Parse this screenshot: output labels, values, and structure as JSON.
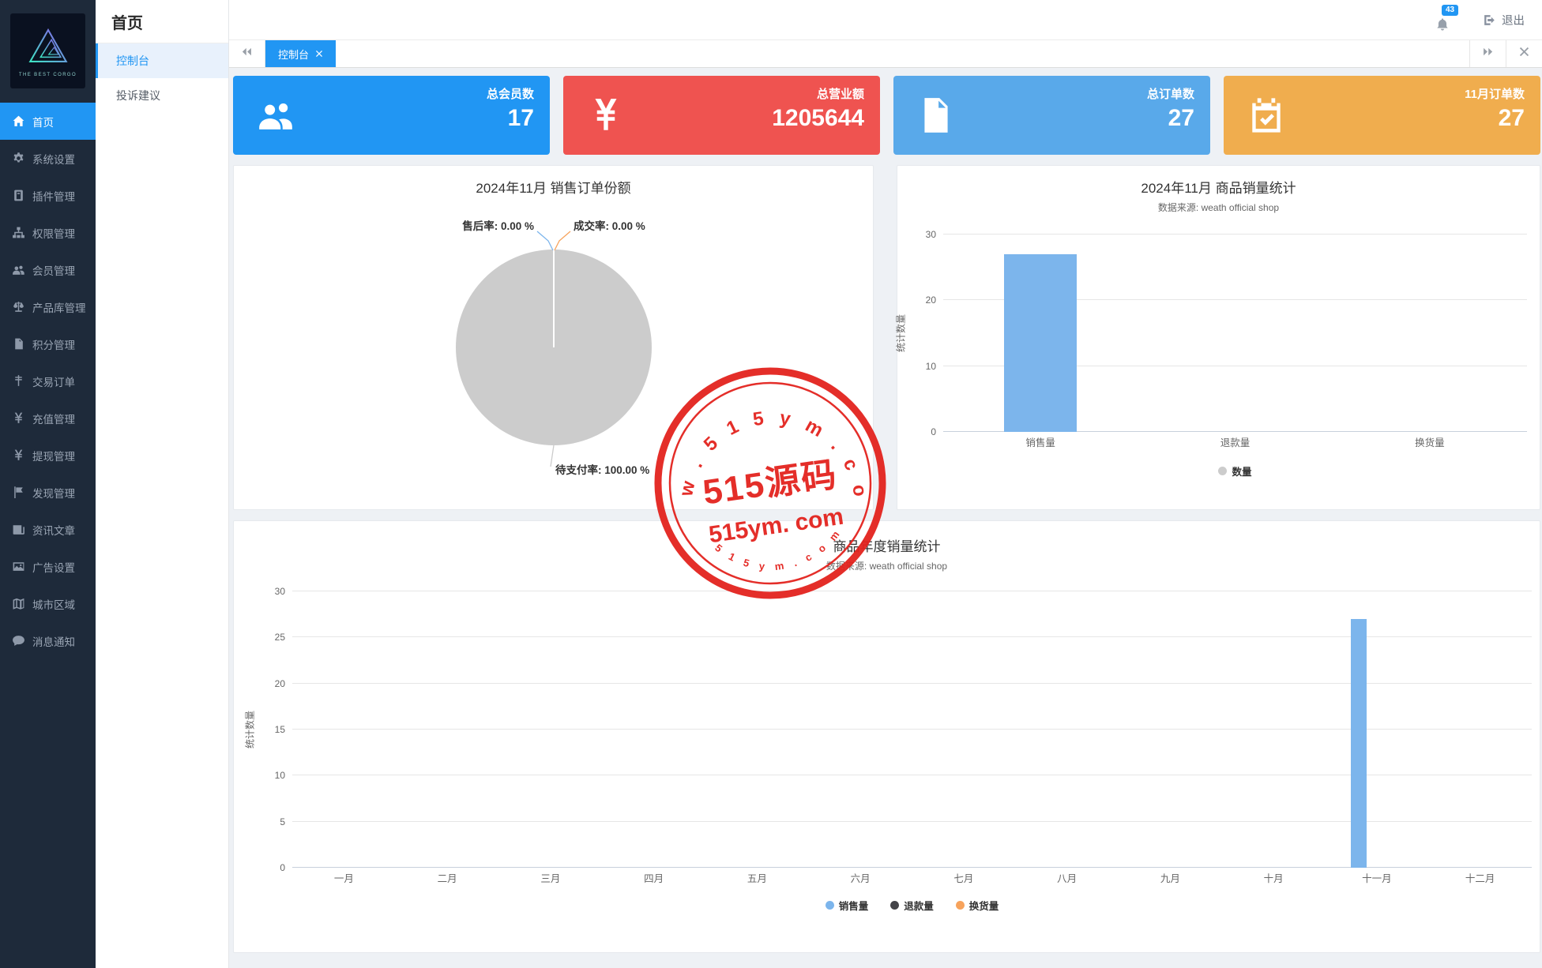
{
  "app": {
    "logo_text": "THE BEST CORGO",
    "logo_icon": "triangle-logo"
  },
  "sidebar": {
    "items": [
      {
        "name": "home",
        "label": "首页",
        "icon": "home-icon",
        "active": true
      },
      {
        "name": "system-settings",
        "label": "系统设置",
        "icon": "gear-icon"
      },
      {
        "name": "plugin-management",
        "label": "插件管理",
        "icon": "plugin-icon"
      },
      {
        "name": "permission-management",
        "label": "权限管理",
        "icon": "sitemap-icon"
      },
      {
        "name": "member-management",
        "label": "会员管理",
        "icon": "users-icon"
      },
      {
        "name": "product-library",
        "label": "产品库管理",
        "icon": "scale-icon"
      },
      {
        "name": "points-management",
        "label": "积分管理",
        "icon": "points-file-icon"
      },
      {
        "name": "trade-orders",
        "label": "交易订单",
        "icon": "transaction-icon"
      },
      {
        "name": "recharge-management",
        "label": "充值管理",
        "icon": "yen-icon"
      },
      {
        "name": "withdrawal-management",
        "label": "提现管理",
        "icon": "yen-icon"
      },
      {
        "name": "discovery-management",
        "label": "发现管理",
        "icon": "flag-icon"
      },
      {
        "name": "news-articles",
        "label": "资讯文章",
        "icon": "newspaper-icon"
      },
      {
        "name": "ad-settings",
        "label": "广告设置",
        "icon": "image-icon"
      },
      {
        "name": "city-regions",
        "label": "城市区域",
        "icon": "map-icon"
      },
      {
        "name": "message-notifications",
        "label": "消息通知",
        "icon": "comment-icon"
      }
    ]
  },
  "submenu": {
    "title": "首页",
    "items": [
      {
        "name": "console",
        "label": "控制台",
        "active": true
      },
      {
        "name": "complaints-suggestions",
        "label": "投诉建议",
        "active": false
      }
    ]
  },
  "header": {
    "notification_count": "43",
    "logout_label": "退出"
  },
  "tabbar": {
    "tabs": [
      {
        "label": "控制台",
        "active": true,
        "closable": true
      }
    ]
  },
  "stat_cards": [
    {
      "name": "total-members",
      "label": "总会员数",
      "value": "17",
      "color": "#2196f3",
      "icon": "users-group-icon"
    },
    {
      "name": "total-revenue",
      "label": "总营业额",
      "value": "1205644",
      "color": "#ef5350",
      "icon": "yen-sign-icon"
    },
    {
      "name": "total-orders",
      "label": "总订单数",
      "value": "27",
      "color": "#59a9ea",
      "icon": "file-text-icon"
    },
    {
      "name": "november-orders",
      "label": "11月订单数",
      "value": "27",
      "color": "#f0ad4e",
      "icon": "calendar-check-icon"
    }
  ],
  "chart_data": [
    {
      "type": "pie",
      "title": "2024年11月 销售订单份额",
      "slices": [
        {
          "label": "售后率",
          "value_pct": 0.0,
          "display": "售后率: 0.00 %",
          "leader_color": "#7cb5ec"
        },
        {
          "label": "成交率",
          "value_pct": 0.0,
          "display": "成交率: 0.00 %",
          "leader_color": "#f7a35c"
        },
        {
          "label": "待支付率",
          "value_pct": 100.0,
          "display": "待支付率: 100.00 %",
          "leader_color": "#cccccc",
          "color": "#cccccc"
        }
      ]
    },
    {
      "type": "bar",
      "title": "2024年11月 商品销量统计",
      "subtitle": "数据来源: weath official shop",
      "categories": [
        "销售量",
        "退款量",
        "换货量"
      ],
      "values": [
        27,
        0,
        0
      ],
      "bar_color": "#7cb5ec",
      "ylabel": "统计数量",
      "yticks": [
        0,
        10,
        20,
        30
      ],
      "ylim": [
        0,
        30
      ],
      "grid": true,
      "legend_position": "bottom",
      "legend": [
        {
          "name": "数量",
          "color": "#cccccc"
        }
      ]
    },
    {
      "type": "bar",
      "title": "商品年度销量统计",
      "subtitle": "数据来源: weath official shop",
      "categories": [
        "一月",
        "二月",
        "三月",
        "四月",
        "五月",
        "六月",
        "七月",
        "八月",
        "九月",
        "十月",
        "十一月",
        "十二月"
      ],
      "series": [
        {
          "name": "销售量",
          "color": "#7cb5ec",
          "values": [
            0,
            0,
            0,
            0,
            0,
            0,
            0,
            0,
            0,
            0,
            27,
            0
          ]
        },
        {
          "name": "退款量",
          "color": "#434348",
          "values": [
            0,
            0,
            0,
            0,
            0,
            0,
            0,
            0,
            0,
            0,
            0,
            0
          ]
        },
        {
          "name": "换货量",
          "color": "#f7a35c",
          "values": [
            0,
            0,
            0,
            0,
            0,
            0,
            0,
            0,
            0,
            0,
            0,
            0
          ]
        }
      ],
      "ylabel": "统计数量",
      "yticks": [
        0,
        5,
        10,
        15,
        20,
        25,
        30
      ],
      "ylim": [
        0,
        30
      ],
      "grid": true,
      "legend_position": "bottom"
    }
  ],
  "watermark": {
    "ring_text_top": "w w w . 5 1 5 y m . c o m",
    "center_text": "515源码",
    "sub_text": "515ym. com",
    "ring_text_bottom": "5 1 5 y m . c o m",
    "color": "#e3231e"
  }
}
